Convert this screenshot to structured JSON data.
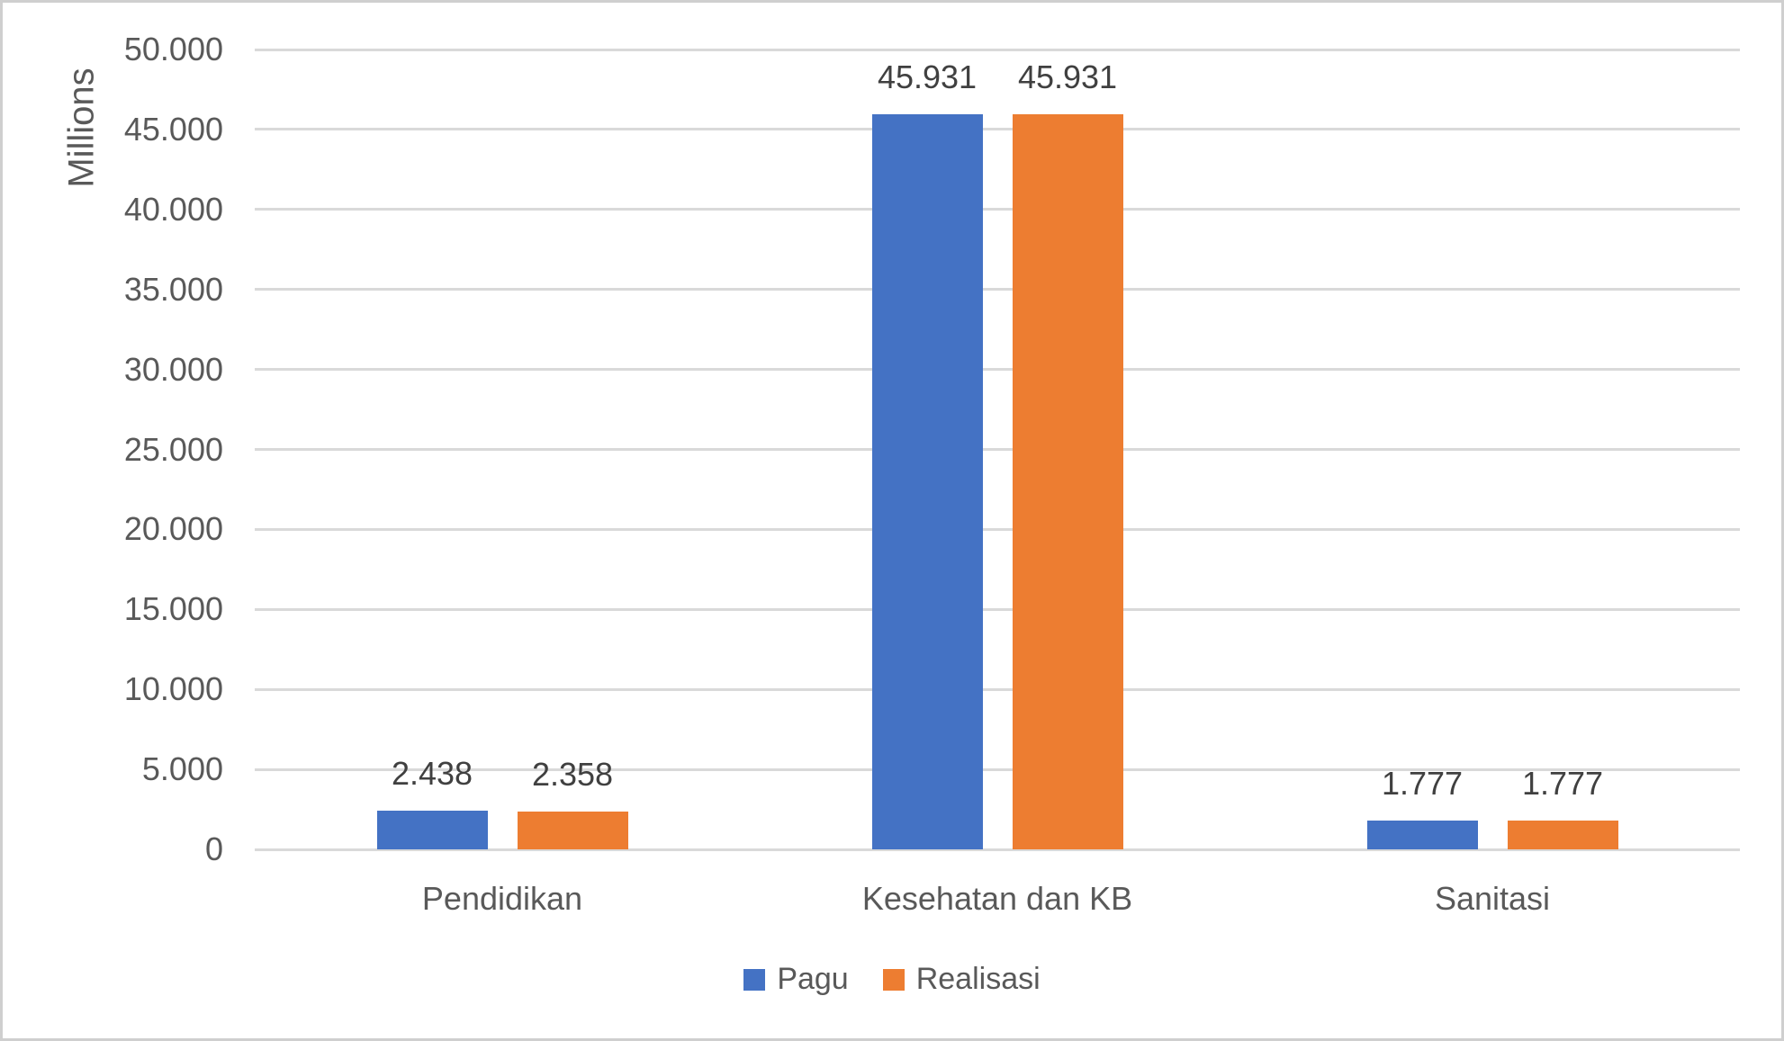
{
  "chart_data": {
    "type": "bar",
    "title": "",
    "xlabel": "",
    "ylabel": "Millions",
    "categories": [
      "Pendidikan",
      "Kesehatan dan KB",
      "Sanitasi"
    ],
    "series": [
      {
        "name": "Pagu",
        "color": "#4472C4",
        "values": [
          2438,
          45931,
          1777
        ],
        "value_labels": [
          "2.438",
          "45.931",
          "1.777"
        ]
      },
      {
        "name": "Realisasi",
        "color": "#ED7D31",
        "values": [
          2358,
          45931,
          1777
        ],
        "value_labels": [
          "2.358",
          "45.931",
          "1.777"
        ]
      }
    ],
    "y_axis": {
      "min": 0,
      "max": 50000,
      "step": 5000,
      "tick_labels": [
        "0",
        "5.000",
        "10.000",
        "15.000",
        "20.000",
        "25.000",
        "30.000",
        "35.000",
        "40.000",
        "45.000",
        "50.000"
      ]
    },
    "grid": true,
    "legend": {
      "position": "bottom",
      "entries": [
        "Pagu",
        "Realisasi"
      ]
    },
    "colors": {
      "gridline": "#D9D9D9",
      "frame_border": "#CFCFCF",
      "tick_text": "#595959",
      "data_label_text": "#404040",
      "background": "#FFFFFF"
    }
  }
}
